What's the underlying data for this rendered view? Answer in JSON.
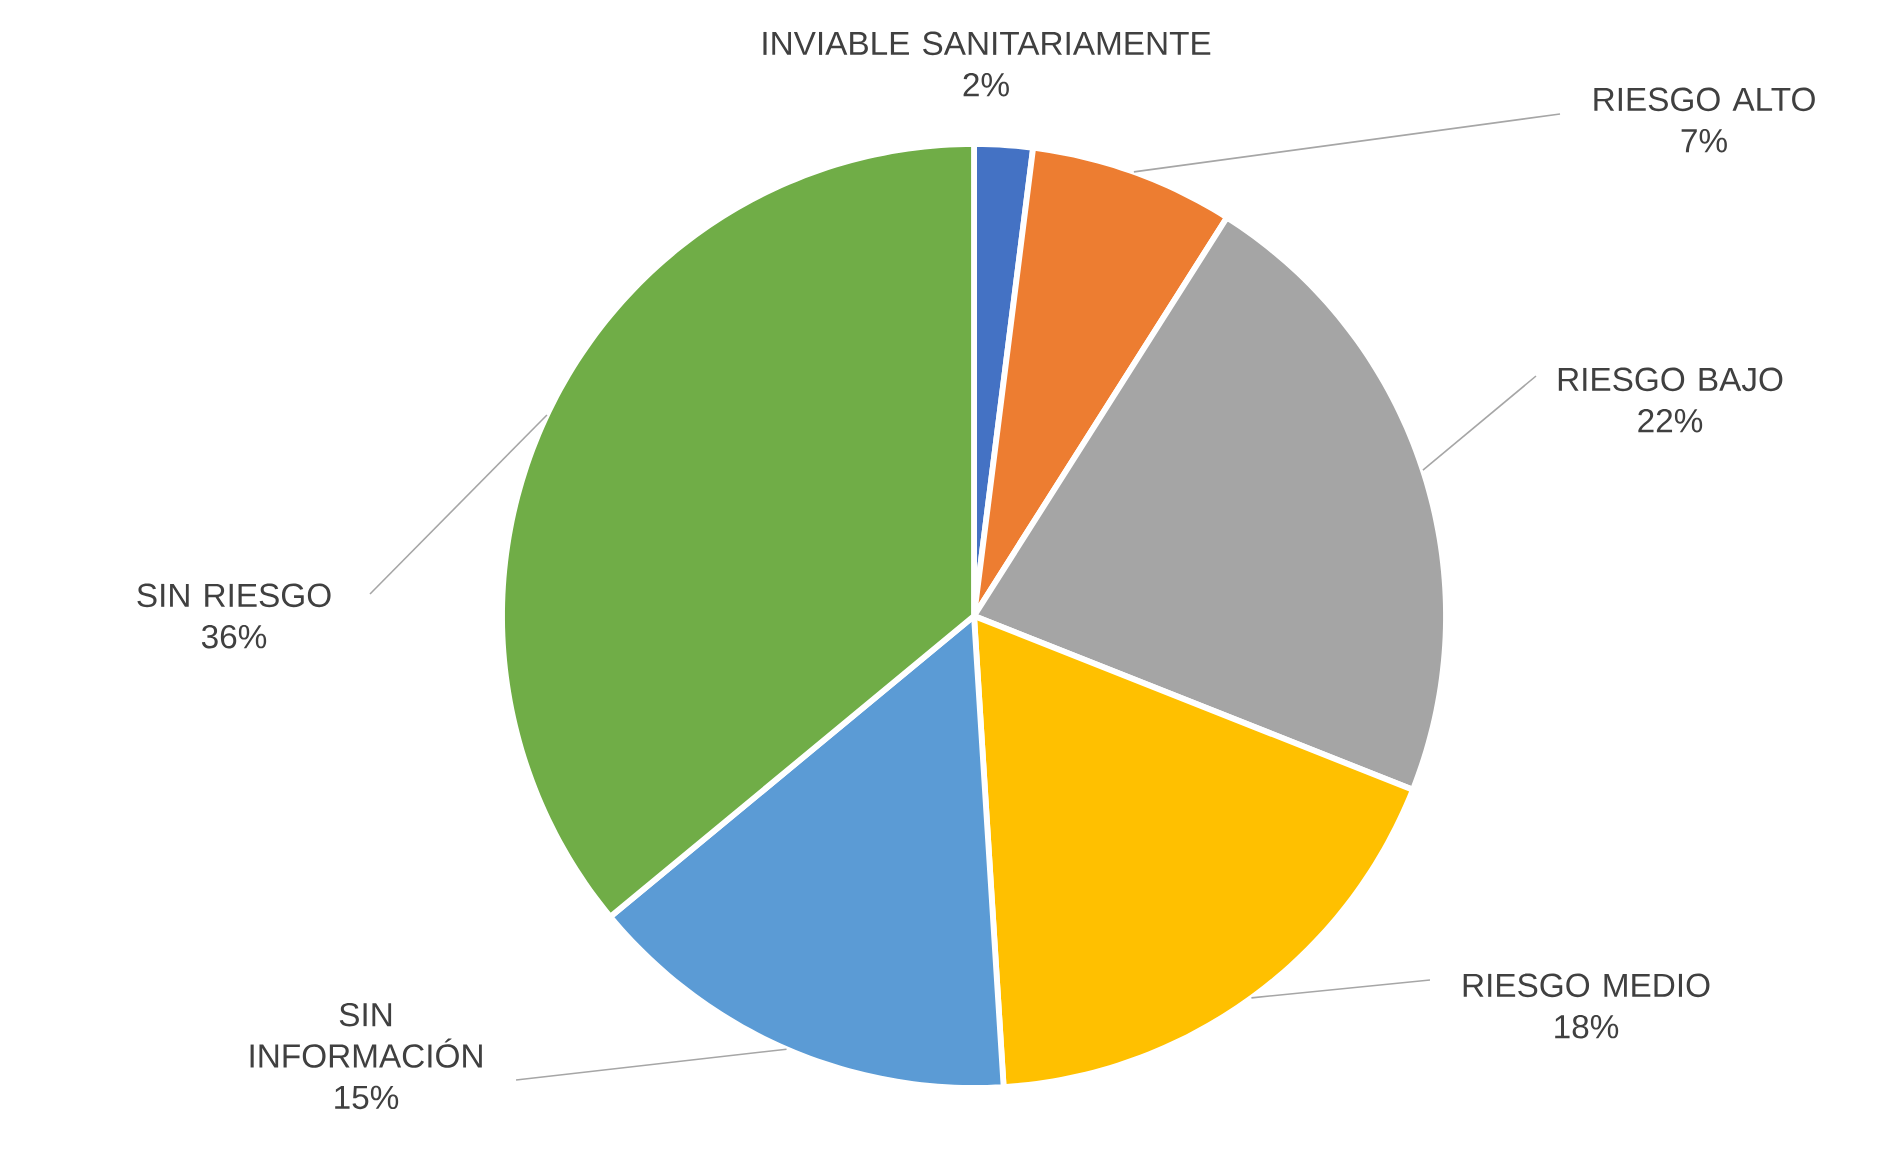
{
  "chart_data": {
    "type": "pie",
    "categories": [
      "INVIABLE SANITARIAMENTE",
      "RIESGO ALTO",
      "RIESGO BAJO",
      "RIESGO MEDIO",
      "SIN INFORMACIÓN",
      "SIN RIESGO"
    ],
    "values": [
      2,
      7,
      22,
      18,
      15,
      36
    ],
    "value_labels": [
      "2%",
      "7%",
      "22%",
      "18%",
      "15%",
      "36%"
    ],
    "colors": [
      "#4472c4",
      "#ed7d31",
      "#a5a5a5",
      "#ffc000",
      "#5b9bd5",
      "#70ad47"
    ]
  }
}
